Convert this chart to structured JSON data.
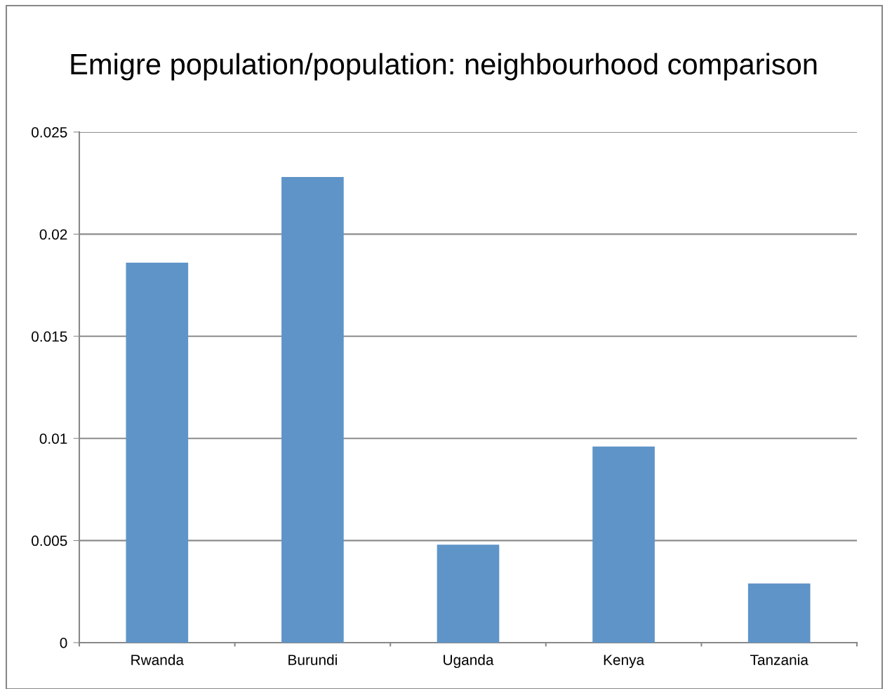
{
  "chart_data": {
    "type": "bar",
    "title": "Emigre population/population: neighbourhood comparison",
    "categories": [
      "Rwanda",
      "Burundi",
      "Uganda",
      "Kenya",
      "Tanzania"
    ],
    "values": [
      0.0186,
      0.0228,
      0.0048,
      0.0096,
      0.0029
    ],
    "color": "#5f94c8",
    "ylim": [
      0,
      0.025
    ],
    "yticks": [
      0,
      0.005,
      0.01,
      0.015,
      0.02,
      0.025
    ],
    "grid": "y"
  }
}
